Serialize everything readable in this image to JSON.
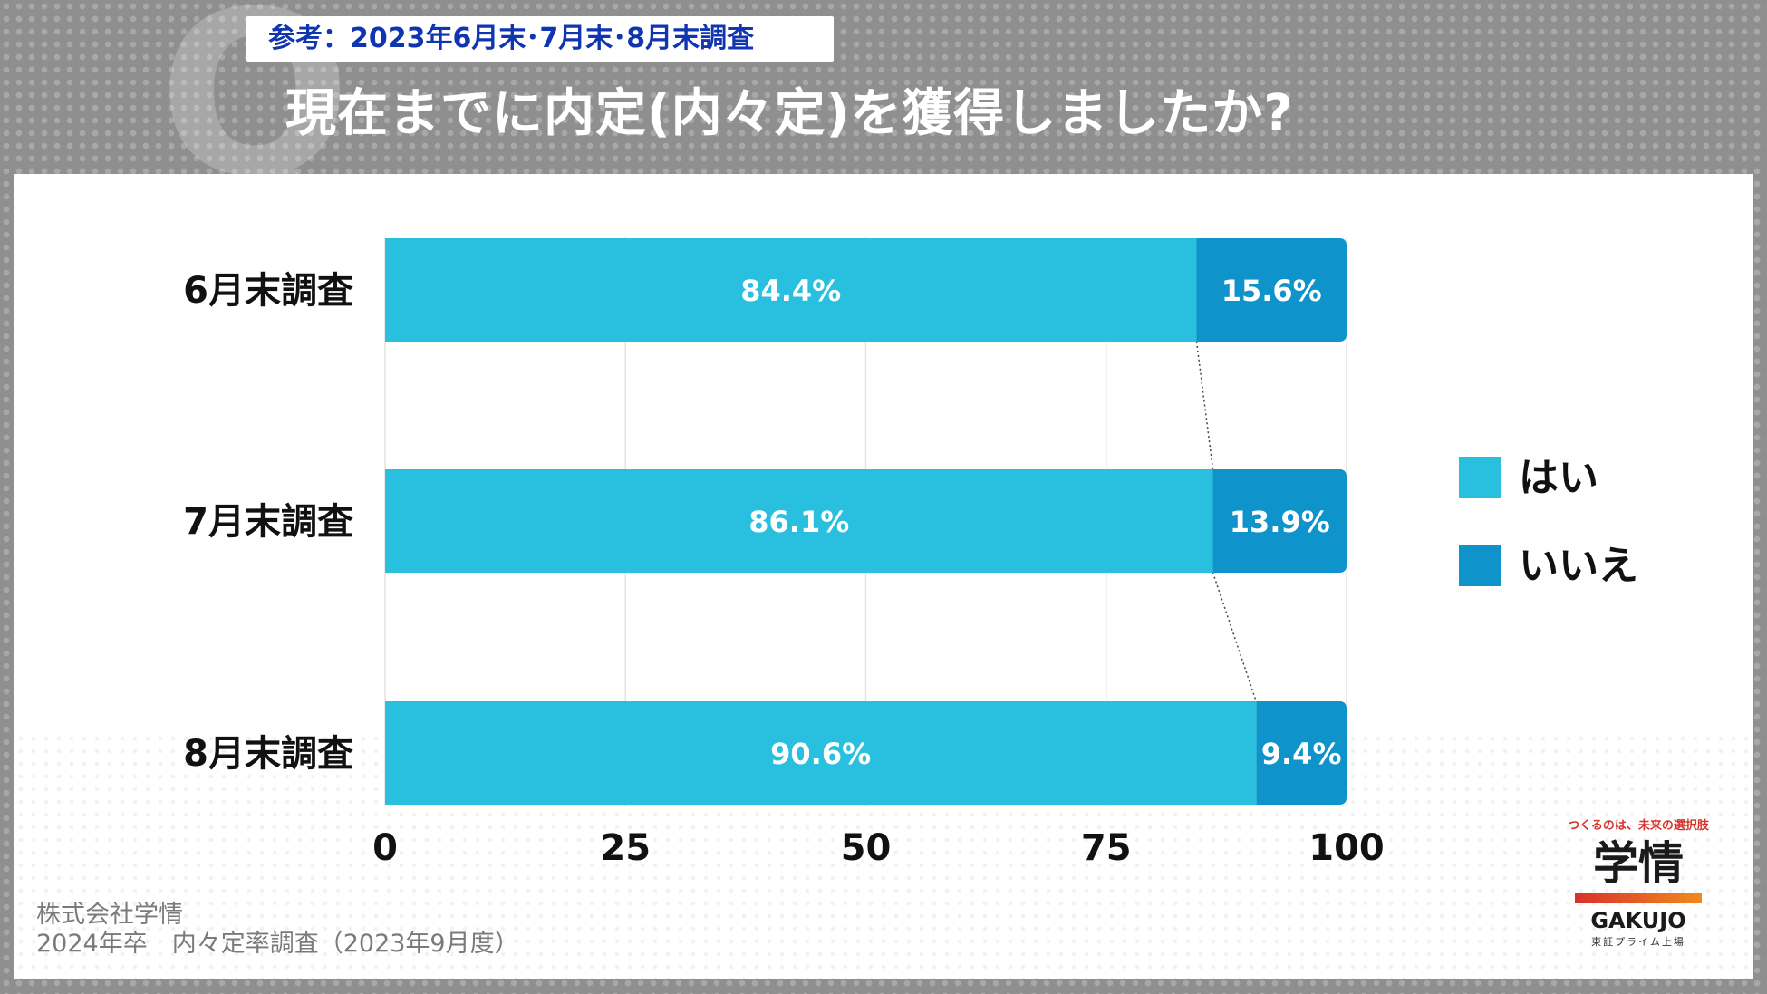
{
  "header": {
    "q_mark": "Q",
    "reference": "参考：2023年6月末･7月末･8月末調査",
    "title": "現在までに内定(内々定)を獲得しましたか?"
  },
  "source": {
    "line1": "株式会社学情",
    "line2": "2024年卒　内々定率調査（2023年9月度）"
  },
  "logo": {
    "tagline": "つくるのは、未来の選択肢",
    "mark": "学情",
    "en": "GAKUJO",
    "sub": "東証プライム上場"
  },
  "colors": {
    "yes": "#29c0e0",
    "no": "#0e93cb",
    "background": "#8f8f8f"
  },
  "chart_data": {
    "type": "bar",
    "orientation": "horizontal",
    "stacked": true,
    "categories": [
      "6月末調査",
      "7月末調査",
      "8月末調査"
    ],
    "series": [
      {
        "name": "はい",
        "values": [
          84.4,
          86.1,
          90.6
        ],
        "labels": [
          "84.4%",
          "86.1%",
          "90.6%"
        ]
      },
      {
        "name": "いいえ",
        "values": [
          15.6,
          13.9,
          9.4
        ],
        "labels": [
          "15.6%",
          "13.9%",
          "9.4%"
        ]
      }
    ],
    "xlim": [
      0,
      100
    ],
    "xticks": [
      0,
      25,
      50,
      75,
      100
    ],
    "xtick_labels": [
      "0",
      "25",
      "50",
      "75",
      "100"
    ],
    "grid": true,
    "legend": "right",
    "connector_lines": true
  }
}
